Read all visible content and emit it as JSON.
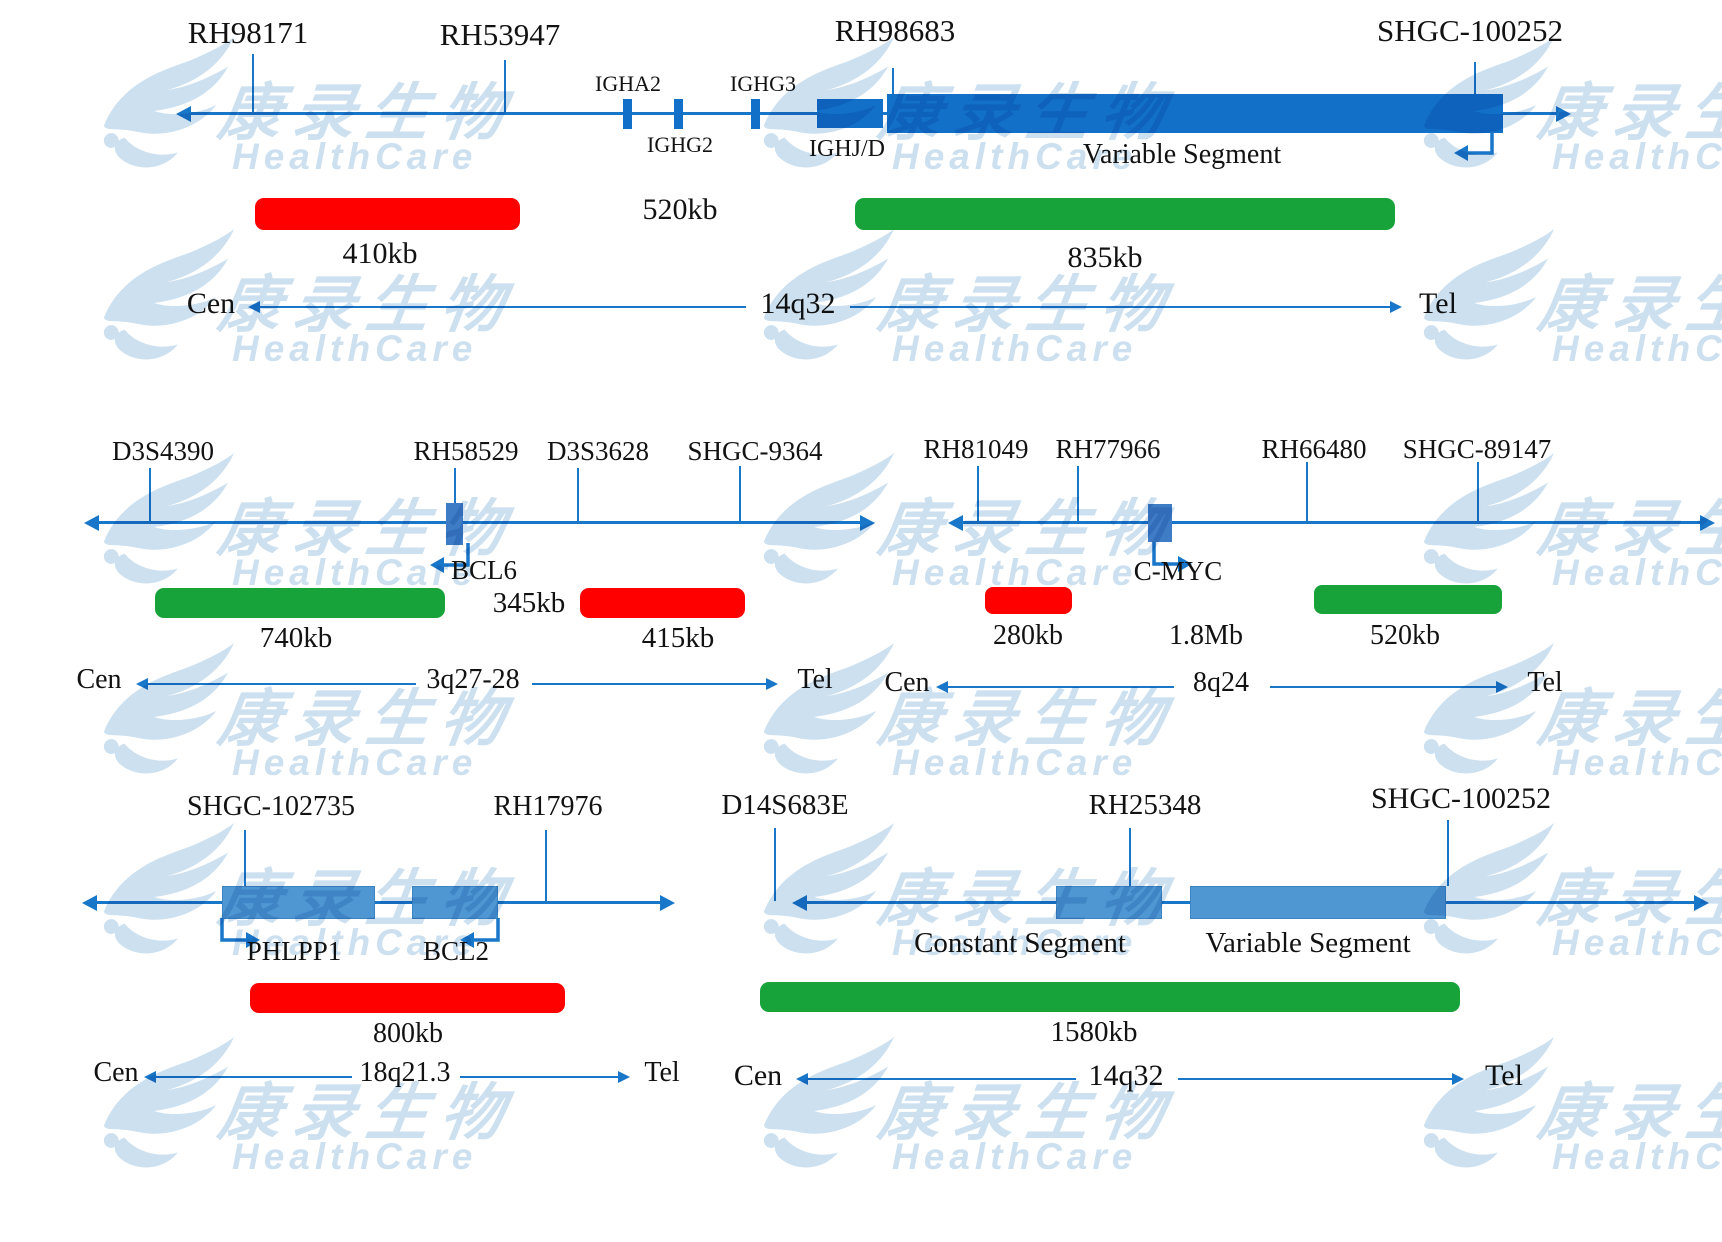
{
  "watermark": {
    "brand_cn": "康录生物",
    "brand_en": "HealthCare"
  },
  "colors": {
    "line_blue": "#1877C8",
    "segment_blue_dark": "#1270C8",
    "segment_blue_light": "#4E97D3",
    "gene_blue": "#3E7CC6",
    "probe_red": "#FE0000",
    "probe_green": "#17A33A",
    "watermark_blue": "#C7DDEF"
  },
  "map_igh_14q32_top": {
    "markers": [
      "RH98171",
      "RH53947",
      "RH98683",
      "SHGC-100252"
    ],
    "gene_labels": [
      "IGHA2",
      "IGHG2",
      "IGHG3"
    ],
    "ighjd_label": "IGHJ/D",
    "variable_segment_label": "Variable Segment",
    "red_probe_size": "410kb",
    "gap_size": "520kb",
    "green_probe_size": "835kb",
    "cen": "Cen",
    "band": "14q32",
    "tel": "Tel"
  },
  "map_bcl6_3q27_28": {
    "markers": [
      "D3S4390",
      "RH58529",
      "D3S3628",
      "SHGC-9364"
    ],
    "gene": "BCL6",
    "green_probe_size": "740kb",
    "gap_size": "345kb",
    "red_probe_size": "415kb",
    "cen": "Cen",
    "band": "3q27-28",
    "tel": "Tel"
  },
  "map_cmyc_8q24": {
    "markers": [
      "RH81049",
      "RH77966",
      "RH66480",
      "SHGC-89147"
    ],
    "gene": "C-MYC",
    "red_probe_size": "280kb",
    "gap_size": "1.8Mb",
    "green_probe_size": "520kb",
    "cen": "Cen",
    "band": "8q24",
    "tel": "Tel"
  },
  "map_bcl2_18q21_3": {
    "markers": [
      "SHGC-102735",
      "RH17976"
    ],
    "genes": [
      "PHLPP1",
      "BCL2"
    ],
    "red_probe_size": "800kb",
    "cen": "Cen",
    "band": "18q21.3",
    "tel": "Tel"
  },
  "map_igh_14q32_bottom": {
    "markers": [
      "D14S683E",
      "RH25348",
      "SHGC-100252"
    ],
    "segments": [
      "Constant Segment",
      "Variable Segment"
    ],
    "green_probe_size": "1580kb",
    "cen": "Cen",
    "band": "14q32",
    "tel": "Tel"
  }
}
